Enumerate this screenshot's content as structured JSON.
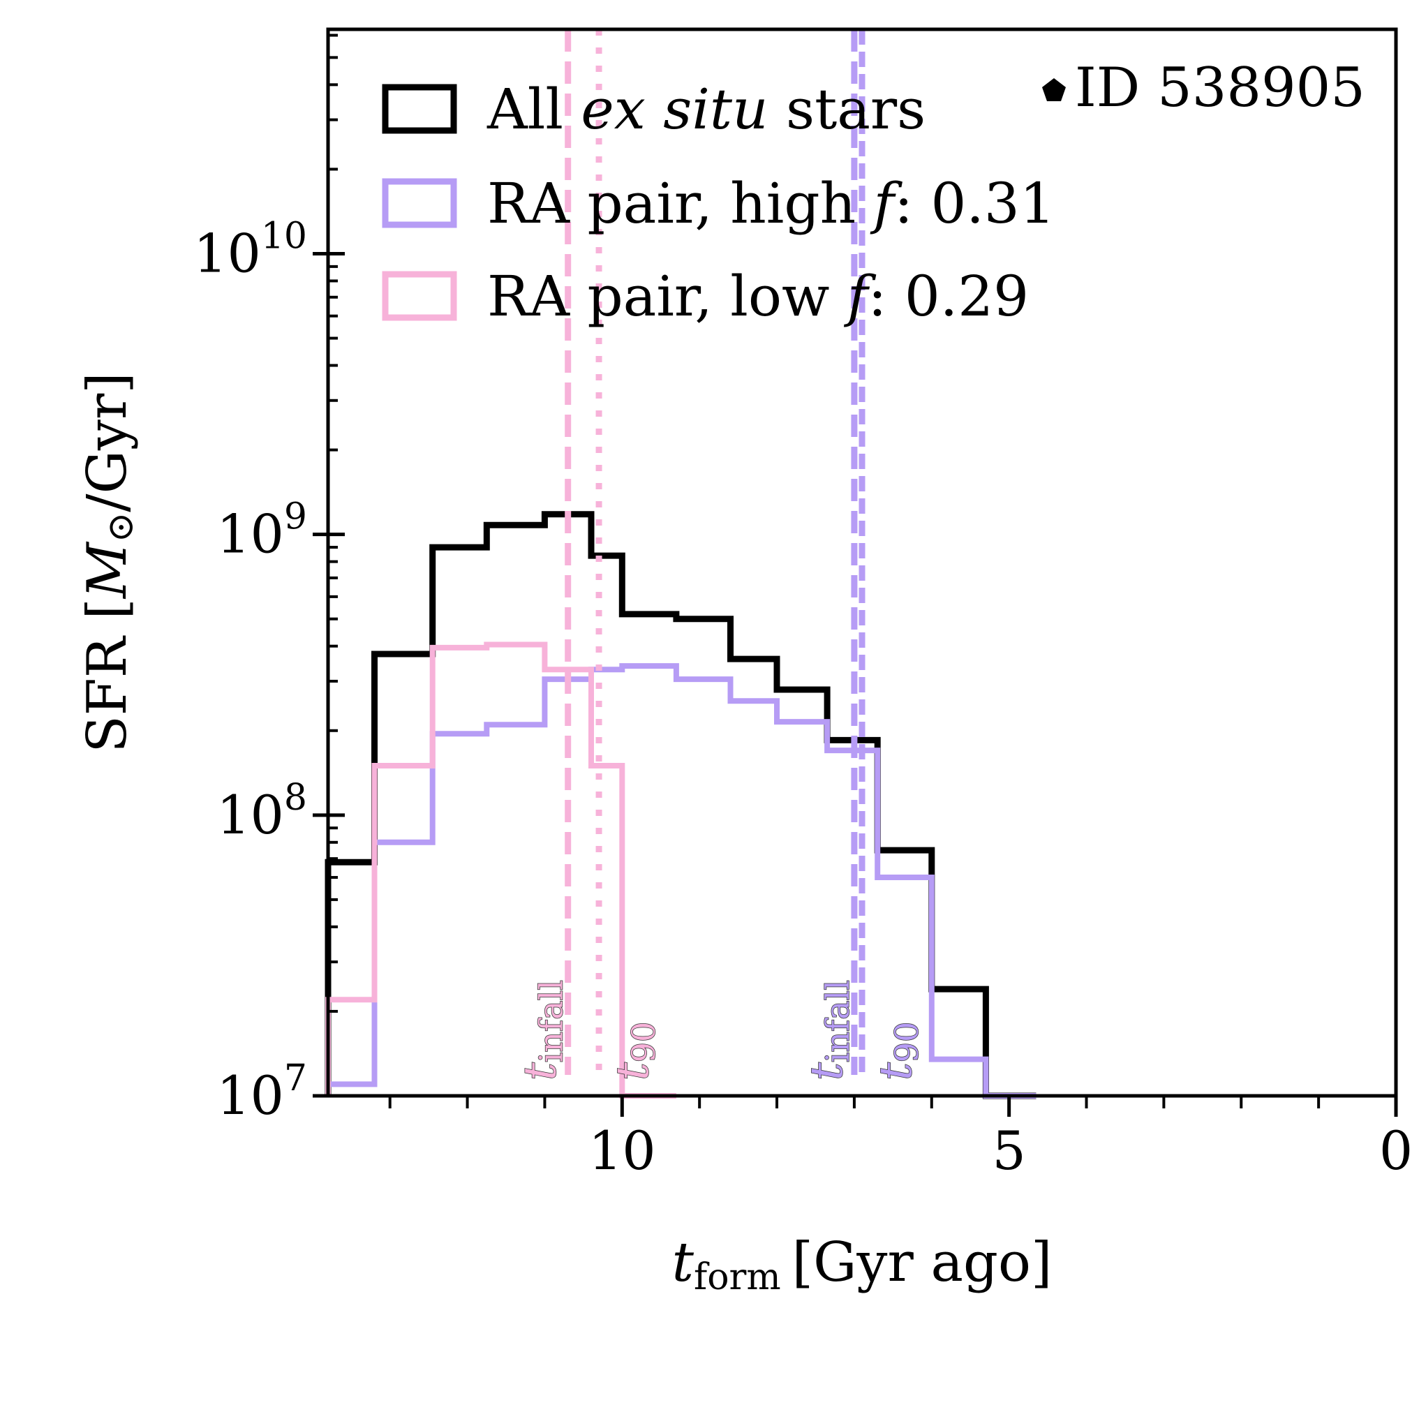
{
  "chart_data": {
    "type": "step-histogram",
    "title": "",
    "id_label": "ID 538905",
    "xlabel": {
      "symbol": "t",
      "sub": "form",
      "unit": "[Gyr ago]"
    },
    "ylabel": {
      "prefix": "SFR [",
      "symbol": "M",
      "sun": "⊙",
      "suffix": "/Gyr]"
    },
    "x_range_gyr_ago": [
      13.8,
      0
    ],
    "y_range": [
      10000000.0,
      63000000000.0
    ],
    "y_scale": "log",
    "x_ticks": [
      {
        "value": 10,
        "label": "10"
      },
      {
        "value": 5,
        "label": "5"
      },
      {
        "value": 0,
        "label": "0"
      }
    ],
    "y_ticks": [
      {
        "value": 10000000.0,
        "base": "10",
        "exp": "7"
      },
      {
        "value": 100000000.0,
        "base": "10",
        "exp": "8"
      },
      {
        "value": 1000000000.0,
        "base": "10",
        "exp": "9"
      },
      {
        "value": 10000000000.0,
        "base": "10",
        "exp": "10"
      }
    ],
    "x_minor_step": 1,
    "legend": {
      "placement": "top-left",
      "entries": [
        {
          "text_parts": [
            {
              "text": "All ",
              "italic": false
            },
            {
              "text": "ex situ",
              "italic": true
            },
            {
              "text": " stars",
              "italic": false
            }
          ]
        },
        {
          "text_parts": [
            {
              "text": "RA pair, high ",
              "italic": false
            },
            {
              "text": "f",
              "italic": true
            },
            {
              "text": ": 0.31",
              "italic": false
            }
          ]
        },
        {
          "text_parts": [
            {
              "text": "RA pair, low ",
              "italic": false
            },
            {
              "text": "f",
              "italic": true
            },
            {
              "text": ": 0.29",
              "italic": false
            }
          ]
        }
      ]
    },
    "series": [
      {
        "color": "#000000",
        "edges": [
          13.8,
          13.2,
          12.45,
          11.75,
          11.0,
          10.4,
          10.0,
          9.3,
          8.6,
          8.0,
          7.35,
          6.7,
          6.0,
          5.3,
          4.65
        ],
        "values": [
          68000000.0,
          375000000.0,
          900000000.0,
          1080000000.0,
          1180000000.0,
          840000000.0,
          520000000.0,
          500000000.0,
          360000000.0,
          280000000.0,
          185000000.0,
          75000000.0,
          24000000.0,
          10000000.0
        ]
      },
      {
        "color": "#b69cf5",
        "edges": [
          13.8,
          13.2,
          12.45,
          11.75,
          11.0,
          10.4,
          10.0,
          9.3,
          8.6,
          8.0,
          7.35,
          6.7,
          6.0,
          5.3,
          4.65
        ],
        "values": [
          11000000.0,
          80000000.0,
          195000000.0,
          210000000.0,
          305000000.0,
          330000000.0,
          340000000.0,
          305000000.0,
          255000000.0,
          215000000.0,
          170000000.0,
          60000000.0,
          13500000.0,
          10000000.0
        ]
      },
      {
        "color": "#f7b2d9",
        "edges": [
          13.8,
          13.2,
          12.45,
          11.75,
          11.0,
          10.4,
          10.0,
          9.3
        ],
        "values": [
          22000000.0,
          150000000.0,
          395000000.0,
          405000000.0,
          330000000.0,
          150000000.0,
          10000000.0
        ]
      }
    ],
    "vlines": [
      {
        "x": 10.7,
        "color": "#f7b2d9",
        "style": "dashed",
        "symbol": "t",
        "sub": "infall"
      },
      {
        "x": 10.3,
        "color": "#f7b2d9",
        "style": "dotted",
        "symbol": "t",
        "sub": "90"
      },
      {
        "x": 7.0,
        "color": "#b69cf5",
        "style": "dashed",
        "symbol": "t",
        "sub": "infall"
      },
      {
        "x": 6.9,
        "color": "#b69cf5",
        "style": "densedash",
        "symbol": "t",
        "sub": "90"
      }
    ]
  }
}
